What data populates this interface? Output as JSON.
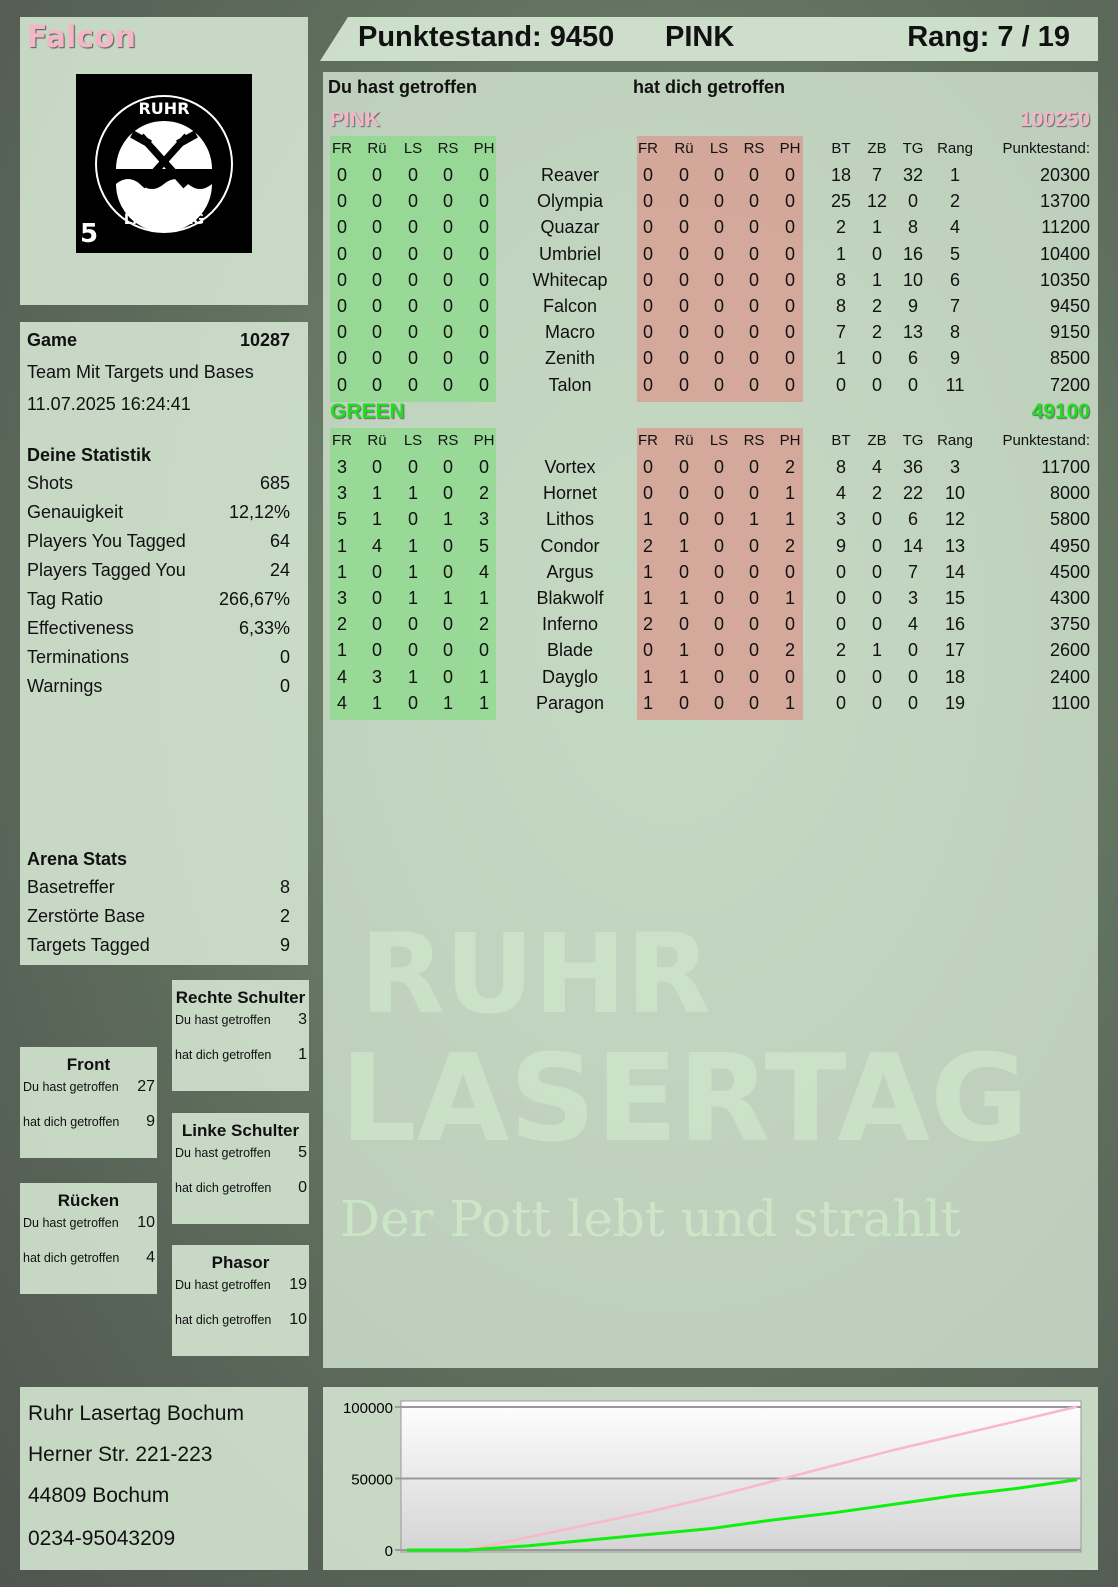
{
  "header": {
    "player": "Falcon",
    "score_label": "Punktestand: 9450",
    "team": "PINK",
    "rank_label": "Rang: 7 / 19"
  },
  "logo": {
    "top_text": "RUHR",
    "bottom_text": "LASERTAG",
    "badge_number": "5"
  },
  "watermark": {
    "line1": "RUHR",
    "line2": "LASERTAG",
    "slogan": "Der Pott lebt und strahlt"
  },
  "game": {
    "label": "Game",
    "number": "10287",
    "mode": "Team Mit Targets und Bases",
    "datetime": "11.07.2025 16:24:41"
  },
  "stats": {
    "title": "Deine Statistik",
    "items": [
      {
        "label": "Shots",
        "value": "685"
      },
      {
        "label": "Genauigkeit",
        "value": "12,12%"
      },
      {
        "label": "Players You Tagged",
        "value": "64"
      },
      {
        "label": "Players Tagged You",
        "value": "24"
      },
      {
        "label": "Tag Ratio",
        "value": "266,67%"
      },
      {
        "label": "Effectiveness",
        "value": "6,33%"
      },
      {
        "label": "Terminations",
        "value": "0"
      },
      {
        "label": "Warnings",
        "value": "0"
      }
    ]
  },
  "arena": {
    "title": "Arena Stats",
    "items": [
      {
        "label": "Basetreffer",
        "value": "8"
      },
      {
        "label": "Zerstörte Base",
        "value": "2"
      },
      {
        "label": "Targets Tagged",
        "value": "9"
      }
    ]
  },
  "body_parts": [
    {
      "title": "Rechte Schulter",
      "hit_label": "Du hast getroffen",
      "hit": "3",
      "got_label": "hat dich getroffen",
      "got": "1"
    },
    {
      "title": "Front",
      "hit_label": "Du hast getroffen",
      "hit": "27",
      "got_label": "hat dich getroffen",
      "got": "9"
    },
    {
      "title": "Linke Schulter",
      "hit_label": "Du hast getroffen",
      "hit": "5",
      "got_label": "hat dich getroffen",
      "got": "0"
    },
    {
      "title": "Rücken",
      "hit_label": "Du hast getroffen",
      "hit": "10",
      "got_label": "hat dich getroffen",
      "got": "4"
    },
    {
      "title": "Phasor",
      "hit_label": "Du hast getroffen",
      "hit": "19",
      "got_label": "hat dich getroffen",
      "got": "10"
    }
  ],
  "table": {
    "you_hit_label": "Du hast getroffen",
    "hit_you_label": "hat dich getroffen",
    "headers_hit": [
      "FR",
      "Rü",
      "LS",
      "RS",
      "PH"
    ],
    "headers_stats": [
      "BT",
      "ZB",
      "TG",
      "Rang",
      "Punktestand:"
    ],
    "teams": [
      {
        "name": "PINK",
        "total": "100250",
        "color": "#f4b6c6",
        "players": [
          {
            "n": "Reaver",
            "hit": [
              0,
              0,
              0,
              0,
              0
            ],
            "got": [
              0,
              0,
              0,
              0,
              0
            ],
            "s": [
              18,
              7,
              32,
              1,
              20300
            ]
          },
          {
            "n": "Olympia",
            "hit": [
              0,
              0,
              0,
              0,
              0
            ],
            "got": [
              0,
              0,
              0,
              0,
              0
            ],
            "s": [
              25,
              12,
              0,
              2,
              13700
            ]
          },
          {
            "n": "Quazar",
            "hit": [
              0,
              0,
              0,
              0,
              0
            ],
            "got": [
              0,
              0,
              0,
              0,
              0
            ],
            "s": [
              2,
              1,
              8,
              4,
              11200
            ]
          },
          {
            "n": "Umbriel",
            "hit": [
              0,
              0,
              0,
              0,
              0
            ],
            "got": [
              0,
              0,
              0,
              0,
              0
            ],
            "s": [
              1,
              0,
              16,
              5,
              10400
            ]
          },
          {
            "n": "Whitecap",
            "hit": [
              0,
              0,
              0,
              0,
              0
            ],
            "got": [
              0,
              0,
              0,
              0,
              0
            ],
            "s": [
              8,
              1,
              10,
              6,
              10350
            ]
          },
          {
            "n": "Falcon",
            "hit": [
              0,
              0,
              0,
              0,
              0
            ],
            "got": [
              0,
              0,
              0,
              0,
              0
            ],
            "s": [
              8,
              2,
              9,
              7,
              9450
            ]
          },
          {
            "n": "Macro",
            "hit": [
              0,
              0,
              0,
              0,
              0
            ],
            "got": [
              0,
              0,
              0,
              0,
              0
            ],
            "s": [
              7,
              2,
              13,
              8,
              9150
            ]
          },
          {
            "n": "Zenith",
            "hit": [
              0,
              0,
              0,
              0,
              0
            ],
            "got": [
              0,
              0,
              0,
              0,
              0
            ],
            "s": [
              1,
              0,
              6,
              9,
              8500
            ]
          },
          {
            "n": "Talon",
            "hit": [
              0,
              0,
              0,
              0,
              0
            ],
            "got": [
              0,
              0,
              0,
              0,
              0
            ],
            "s": [
              0,
              0,
              0,
              11,
              7200
            ]
          }
        ]
      },
      {
        "name": "GREEN",
        "total": "49100",
        "color": "#22dd22",
        "players": [
          {
            "n": "Vortex",
            "hit": [
              3,
              0,
              0,
              0,
              0
            ],
            "got": [
              0,
              0,
              0,
              0,
              2
            ],
            "s": [
              8,
              4,
              36,
              3,
              11700
            ]
          },
          {
            "n": "Hornet",
            "hit": [
              3,
              1,
              1,
              0,
              2
            ],
            "got": [
              0,
              0,
              0,
              0,
              1
            ],
            "s": [
              4,
              2,
              22,
              10,
              8000
            ]
          },
          {
            "n": "Lithos",
            "hit": [
              5,
              1,
              0,
              1,
              3
            ],
            "got": [
              1,
              0,
              0,
              1,
              1
            ],
            "s": [
              3,
              0,
              6,
              12,
              5800
            ]
          },
          {
            "n": "Condor",
            "hit": [
              1,
              4,
              1,
              0,
              5
            ],
            "got": [
              2,
              1,
              0,
              0,
              2
            ],
            "s": [
              9,
              0,
              14,
              13,
              4950
            ]
          },
          {
            "n": "Argus",
            "hit": [
              1,
              0,
              1,
              0,
              4
            ],
            "got": [
              1,
              0,
              0,
              0,
              0
            ],
            "s": [
              0,
              0,
              7,
              14,
              4500
            ]
          },
          {
            "n": "Blakwolf",
            "hit": [
              3,
              0,
              1,
              1,
              1
            ],
            "got": [
              1,
              1,
              0,
              0,
              1
            ],
            "s": [
              0,
              0,
              3,
              15,
              4300
            ]
          },
          {
            "n": "Inferno",
            "hit": [
              2,
              0,
              0,
              0,
              2
            ],
            "got": [
              2,
              0,
              0,
              0,
              0
            ],
            "s": [
              0,
              0,
              4,
              16,
              3750
            ]
          },
          {
            "n": "Blade",
            "hit": [
              1,
              0,
              0,
              0,
              0
            ],
            "got": [
              0,
              1,
              0,
              0,
              2
            ],
            "s": [
              2,
              1,
              0,
              17,
              2600
            ]
          },
          {
            "n": "Dayglo",
            "hit": [
              4,
              3,
              1,
              0,
              1
            ],
            "got": [
              1,
              1,
              0,
              0,
              0
            ],
            "s": [
              0,
              0,
              0,
              18,
              2400
            ]
          },
          {
            "n": "Paragon",
            "hit": [
              4,
              1,
              0,
              1,
              1
            ],
            "got": [
              1,
              0,
              0,
              0,
              1
            ],
            "s": [
              0,
              0,
              0,
              19,
              1100
            ]
          }
        ]
      }
    ]
  },
  "address": [
    "Ruhr Lasertag Bochum",
    "Herner Str. 221-223",
    "44809 Bochum",
    "0234-95043209"
  ],
  "chart_data": {
    "type": "line",
    "title": "",
    "xlabel": "",
    "ylabel": "",
    "ylim": [
      0,
      100000
    ],
    "yticks": [
      "0",
      "50000",
      "100000"
    ],
    "grid": true,
    "legend": "none",
    "series": [
      {
        "color": "#f9b9c6",
        "values": [
          0,
          0,
          9000,
          18000,
          27000,
          37000,
          48000,
          59000,
          70000,
          80000,
          90000,
          100250
        ]
      },
      {
        "color": "#11ee11",
        "values": [
          0,
          0,
          3000,
          7000,
          11000,
          15000,
          21000,
          26000,
          32000,
          38000,
          43000,
          49100
        ]
      }
    ]
  }
}
